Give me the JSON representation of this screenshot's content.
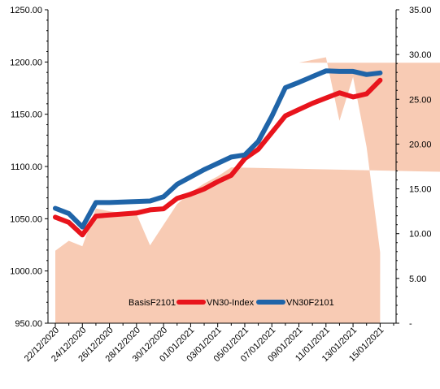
{
  "chart_data": {
    "type": "line",
    "title": "",
    "xlabel": "",
    "ylabel": "",
    "ylim": [
      950,
      1250
    ],
    "y2lim": [
      0,
      35
    ],
    "yticks": [
      "950.00",
      "1000.00",
      "1050.00",
      "1100.00",
      "1150.00",
      "1200.00",
      "1250.00"
    ],
    "y2ticks": [
      "-",
      "5.00",
      "10.00",
      "15.00",
      "20.00",
      "25.00",
      "30.00",
      "35.00"
    ],
    "x": [
      "22/12/2020",
      "23/12/2020",
      "24/12/2020",
      "25/12/2020",
      "26/12/2020",
      "27/12/2020",
      "28/12/2020",
      "29/12/2020",
      "30/12/2020",
      "31/12/2020",
      "01/01/2021",
      "02/01/2021",
      "03/01/2021",
      "04/01/2021",
      "05/01/2021",
      "06/01/2021",
      "07/01/2021",
      "08/01/2021",
      "09/01/2021",
      "10/01/2021",
      "11/01/2021",
      "12/01/2021",
      "13/01/2021",
      "14/01/2021",
      "15/01/2021",
      "16/01/2021"
    ],
    "xtick_labels": [
      "22/12/2020",
      "24/12/2020",
      "26/12/2020",
      "28/12/2020",
      "30/12/2020",
      "01/01/2021",
      "03/01/2021",
      "05/01/2021",
      "07/01/2021",
      "09/01/2021",
      "11/01/2021",
      "13/01/2021",
      "15/01/2021"
    ],
    "legend_position": "bottom-center",
    "series": [
      {
        "name": "BasisF2101",
        "type": "area",
        "axis": "right",
        "color": "#f8cbb4",
        "points": [
          [
            "22/12/2020",
            8.1
          ],
          [
            "23/12/2020",
            9.2
          ],
          [
            "24/12/2020",
            8.6
          ],
          [
            "25/12/2020",
            12.8
          ],
          [
            "26/12/2020",
            12.5
          ],
          [
            "27/12/2020",
            12.3
          ],
          [
            "28/12/2020",
            12.2
          ],
          [
            "29/12/2020",
            8.7
          ],
          [
            "30/12/2020",
            11.0
          ],
          [
            "31/12/2020",
            13.3
          ],
          [
            "01/01/2021",
            14.6
          ],
          [
            "02/01/2021",
            15.6
          ],
          [
            "03/01/2021",
            16.4
          ],
          [
            "04/01/2021",
            17.4
          ],
          [
            "04/12/2021",
            6.7
          ],
          [
            "05/12/2021",
            11.2
          ],
          [
            "06/12/2021",
            18.6
          ],
          [
            "07/12/2021",
            28.7
          ],
          [
            "09/01/2021",
            29.1
          ],
          [
            "11/01/2021",
            29.7
          ],
          [
            "12/01/2021",
            22.6
          ],
          [
            "13/01/2021",
            27.5
          ],
          [
            "14/01/2021",
            19.7
          ],
          [
            "15/01/2021",
            7.9
          ]
        ]
      },
      {
        "name": "VN30-Index",
        "type": "line",
        "axis": "left",
        "color": "#e8141c",
        "points": [
          [
            "22/12/2020",
            1051.5
          ],
          [
            "23/12/2020",
            1046.5
          ],
          [
            "24/12/2020",
            1034.5
          ],
          [
            "25/12/2020",
            1052.5
          ],
          [
            "26/12/2020",
            1053.5
          ],
          [
            "27/12/2020",
            1054.5
          ],
          [
            "28/12/2020",
            1055.5
          ],
          [
            "29/12/2020",
            1058.5
          ],
          [
            "30/12/2020",
            1059.5
          ],
          [
            "31/12/2020",
            1069.5
          ],
          [
            "01/01/2021",
            1073.5
          ],
          [
            "02/01/2021",
            1078.5
          ],
          [
            "03/01/2021",
            1085.5
          ],
          [
            "04/01/2021",
            1091.5
          ],
          [
            "05/01/2021",
            1107.5
          ],
          [
            "06/01/2021",
            1116.5
          ],
          [
            "07/01/2021",
            1132.5
          ],
          [
            "08/01/2021",
            1148.5
          ],
          [
            "09/01/2021",
            1154.5
          ],
          [
            "10/01/2021",
            1160.5
          ],
          [
            "11/01/2021",
            1165.5
          ],
          [
            "12/01/2021",
            1170.5
          ],
          [
            "13/01/2021",
            1166.5
          ],
          [
            "14/01/2021",
            1169.5
          ],
          [
            "15/01/2021",
            1182.5
          ]
        ]
      },
      {
        "name": "VN30F2101",
        "type": "line",
        "axis": "left",
        "color": "#1f64a8",
        "points": [
          [
            "22/12/2020",
            1060.0
          ],
          [
            "23/12/2020",
            1055.0
          ],
          [
            "24/12/2020",
            1042.0
          ],
          [
            "25/12/2020",
            1065.5
          ],
          [
            "26/12/2020",
            1065.5
          ],
          [
            "27/12/2020",
            1066.0
          ],
          [
            "28/12/2020",
            1066.5
          ],
          [
            "29/12/2020",
            1067.0
          ],
          [
            "30/12/2020",
            1071.0
          ],
          [
            "31/12/2020",
            1083.0
          ],
          [
            "01/01/2021",
            1090.0
          ],
          [
            "02/01/2021",
            1097.0
          ],
          [
            "03/01/2021",
            1103.0
          ],
          [
            "04/01/2021",
            1109.0
          ],
          [
            "05/01/2021",
            1111.0
          ],
          [
            "06/01/2021",
            1124.0
          ],
          [
            "07/01/2021",
            1148.0
          ],
          [
            "08/01/2021",
            1175.5
          ],
          [
            "09/01/2021",
            1180.5
          ],
          [
            "10/01/2021",
            1186.0
          ],
          [
            "11/01/2021",
            1191.5
          ],
          [
            "12/01/2021",
            1191.0
          ],
          [
            "13/01/2021",
            1191.0
          ],
          [
            "14/01/2021",
            1188.0
          ],
          [
            "15/01/2021",
            1189.5
          ]
        ]
      }
    ]
  }
}
